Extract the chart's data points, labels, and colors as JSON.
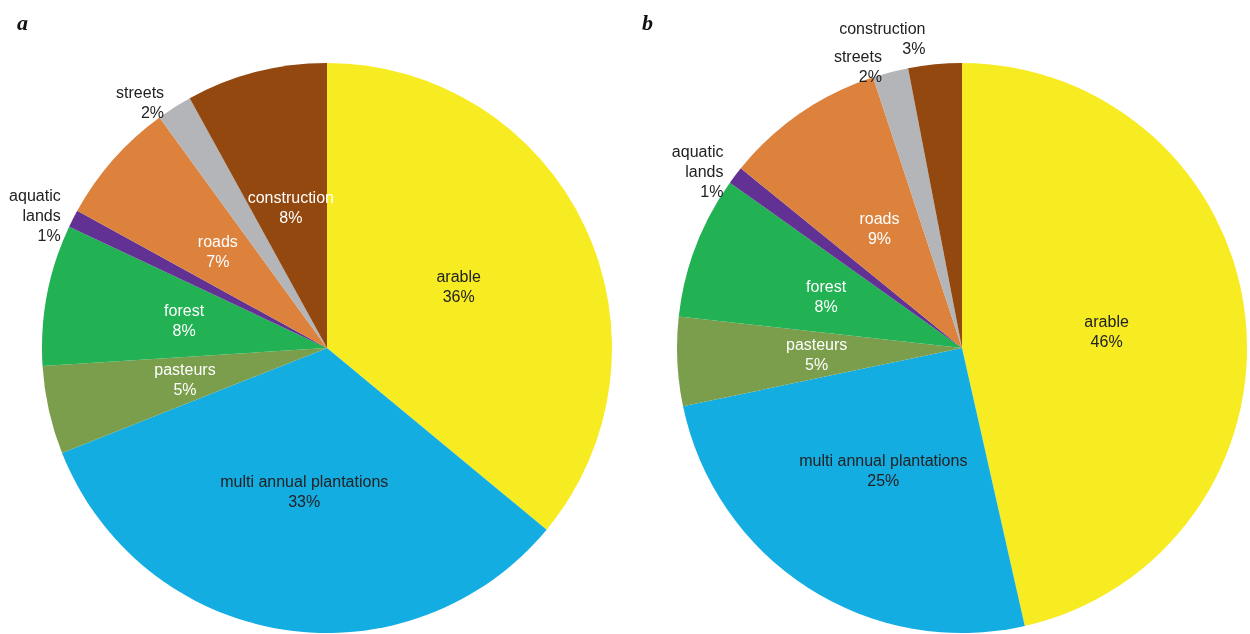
{
  "chart_data": [
    {
      "type": "pie",
      "title": "a",
      "categories": [
        "arable",
        "multi annual plantations",
        "pasteurs",
        "forest",
        "aquatic lands",
        "roads",
        "streets",
        "construction"
      ],
      "values": [
        36,
        33,
        5,
        8,
        1,
        7,
        2,
        8
      ],
      "value_labels": [
        "36%",
        "33%",
        "5%",
        "8%",
        "1%",
        "7%",
        "2%",
        "8%"
      ],
      "colors": [
        "#f7eb22",
        "#14ade2",
        "#7a9e4c",
        "#22b153",
        "#623194",
        "#dc823c",
        "#b3b5b8",
        "#93480f"
      ]
    },
    {
      "type": "pie",
      "title": "b",
      "categories": [
        "arable",
        "multi annual plantations",
        "pasteurs",
        "forest",
        "aquatic lands",
        "roads",
        "streets",
        "construction"
      ],
      "values": [
        46,
        25,
        5,
        8,
        1,
        9,
        2,
        3
      ],
      "value_labels": [
        "46%",
        "25%",
        "5%",
        "8%",
        "1%",
        "9%",
        "2%",
        "3%"
      ],
      "colors": [
        "#f7eb22",
        "#14ade2",
        "#7a9e4c",
        "#22b153",
        "#623194",
        "#dc823c",
        "#b3b5b8",
        "#93480f"
      ]
    }
  ]
}
